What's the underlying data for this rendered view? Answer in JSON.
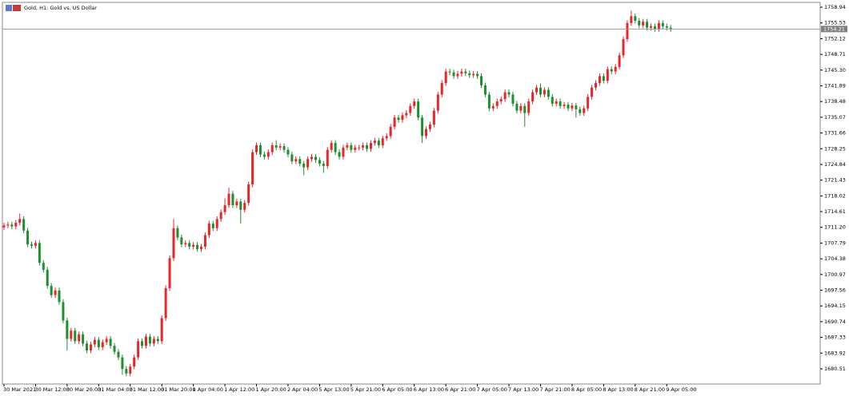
{
  "chart_data": {
    "type": "candlestick",
    "title": "Gold, H1:  Gold vs. US Dollar",
    "up_color": "#e8262a",
    "down_color": "#1f8f2e",
    "last_price": 1754.21,
    "grid": false,
    "ylim": [
      1677.39,
      1759.81
    ],
    "yticks": [
      1758.94,
      1755.53,
      1752.12,
      1748.71,
      {
        "value": 1745.3,
        "label": "1745.30"
      },
      1741.89,
      1738.48,
      1735.07,
      1731.66,
      1728.25,
      1724.84,
      1721.43,
      1718.02,
      1714.61,
      {
        "value": 1711.2,
        "label": "1711.20"
      },
      1707.79,
      1704.38,
      1700.97,
      1697.56,
      1694.15,
      1690.74,
      1687.33,
      1683.92,
      1680.51
    ],
    "categories": [
      "30 Mar 2021",
      null,
      null,
      null,
      null,
      null,
      null,
      null,
      "30 Mar 12:00",
      null,
      null,
      null,
      null,
      null,
      null,
      null,
      "30 Mar 20:00",
      null,
      null,
      null,
      null,
      null,
      null,
      null,
      "31 Mar 04:00",
      null,
      null,
      null,
      null,
      null,
      null,
      null,
      "31 Mar 12:00",
      null,
      null,
      null,
      null,
      null,
      null,
      null,
      "31 Mar 20:00",
      null,
      null,
      null,
      null,
      null,
      null,
      null,
      "1 Apr 04:00",
      null,
      null,
      null,
      null,
      null,
      null,
      null,
      "1 Apr 12:00",
      null,
      null,
      null,
      null,
      null,
      null,
      null,
      "1 Apr 20:00",
      null,
      null,
      null,
      null,
      null,
      null,
      null,
      "2 Apr 04:00",
      null,
      null,
      null,
      null,
      null,
      null,
      null,
      "5 Apr 13:00",
      null,
      null,
      null,
      null,
      null,
      null,
      null,
      "5 Apr 21:00",
      null,
      null,
      null,
      null,
      null,
      null,
      null,
      "6 Apr 05:00",
      null,
      null,
      null,
      null,
      null,
      null,
      null,
      "6 Apr 13:00",
      null,
      null,
      null,
      null,
      null,
      null,
      null,
      "6 Apr 21:00",
      null,
      null,
      null,
      null,
      null,
      null,
      null,
      "7 Apr 05:00",
      null,
      null,
      null,
      null,
      null,
      null,
      null,
      "7 Apr 13:00",
      null,
      null,
      null,
      null,
      null,
      null,
      null,
      "7 Apr 21:00",
      null,
      null,
      null,
      null,
      null,
      null,
      null,
      "8 Apr 05:00",
      null,
      null,
      null,
      null,
      null,
      null,
      null,
      "8 Apr 13:00",
      null,
      null,
      null,
      null,
      null,
      null,
      null,
      "8 Apr 21:00",
      null,
      null,
      null,
      null,
      null,
      null,
      null,
      "9 Apr 05:00",
      null
    ],
    "open": [
      1711.2,
      1711.6,
      1711.8,
      1711.4,
      1712.2,
      1713.0,
      1710.5,
      1707.5,
      1707.2,
      1707.8,
      1703.5,
      1702.0,
      1698.5,
      1696.5,
      1697.5,
      1695.0,
      1691.0,
      1687.0,
      1688.8,
      1686.5,
      1688.0,
      1686.0,
      1684.5,
      1685.8,
      1686.8,
      1685.2,
      1686.3,
      1687.0,
      1685.5,
      1684.2,
      1683.0,
      1680.5,
      1679.5,
      1681.0,
      1683.0,
      1686.5,
      1685.5,
      1687.5,
      1686.0,
      1687.0,
      1686.5,
      1691.5,
      1698.0,
      1704.5,
      1711.0,
      1709.0,
      1707.5,
      1707.8,
      1707.0,
      1707.4,
      1706.5,
      1707.0,
      1709.5,
      1712.0,
      1711.0,
      1713.0,
      1714.5,
      1716.0,
      1718.5,
      1716.0,
      1716.8,
      1715.0,
      1716.5,
      1720.5,
      1727.5,
      1729.0,
      1727.0,
      1726.5,
      1727.5,
      1729.0,
      1728.5,
      1728.8,
      1728.0,
      1727.0,
      1725.5,
      1726.0,
      1725.0,
      1724.2,
      1726.0,
      1726.5,
      1725.8,
      1725.0,
      1724.5,
      1728.0,
      1729.5,
      1727.5,
      1726.5,
      1728.5,
      1729.0,
      1728.0,
      1728.5,
      1728.5,
      1729.0,
      1728.2,
      1729.5,
      1730.0,
      1729.0,
      1730.5,
      1731.0,
      1733.0,
      1735.0,
      1734.5,
      1735.5,
      1736.0,
      1737.5,
      1738.5,
      1735.0,
      1731.0,
      1732.5,
      1733.5,
      1736.5,
      1740.0,
      1742.5,
      1745.0,
      1744.8,
      1744.0,
      1744.5,
      1745.0,
      1744.6,
      1744.2,
      1744.5,
      1744.0,
      1742.0,
      1740.0,
      1737.0,
      1737.5,
      1738.5,
      1739.0,
      1740.5,
      1740.0,
      1738.0,
      1736.5,
      1737.5,
      1736.0,
      1738.5,
      1740.5,
      1741.5,
      1740.0,
      1741.0,
      1739.5,
      1738.0,
      1738.5,
      1737.5,
      1737.8,
      1737.0,
      1737.6,
      1736.8,
      1736.0,
      1737.0,
      1739.5,
      1741.5,
      1742.5,
      1744.0,
      1743.0,
      1745.5,
      1745.0,
      1746.0,
      1748.5,
      1752.0,
      1755.5,
      1757.0,
      1756.0,
      1755.0,
      1755.8,
      1754.5,
      1754.8,
      1754.2,
      1755.5,
      1754.8,
      1754.5
    ],
    "high": [
      1712.2,
      1712.4,
      1712.4,
      1712.8,
      1714.2,
      1713.6,
      1711.1,
      1708.1,
      1708.4,
      1708.4,
      1704.1,
      1702.6,
      1699.1,
      1698.1,
      1698.1,
      1695.6,
      1691.6,
      1689.4,
      1689.4,
      1688.6,
      1688.6,
      1686.6,
      1686.4,
      1687.4,
      1687.4,
      1686.9,
      1687.6,
      1687.6,
      1686.1,
      1684.8,
      1683.6,
      1681.1,
      1681.6,
      1683.6,
      1687.1,
      1687.1,
      1688.1,
      1688.1,
      1687.6,
      1687.6,
      1692.1,
      1698.6,
      1705.1,
      1713.0,
      1711.6,
      1709.6,
      1708.4,
      1708.4,
      1708.0,
      1708.0,
      1707.6,
      1710.1,
      1712.6,
      1712.6,
      1713.6,
      1715.1,
      1717.5,
      1719.8,
      1719.1,
      1717.4,
      1717.4,
      1717.1,
      1721.1,
      1728.1,
      1729.6,
      1729.6,
      1727.6,
      1728.1,
      1729.6,
      1730.1,
      1729.4,
      1729.4,
      1728.6,
      1727.6,
      1726.6,
      1726.6,
      1725.6,
      1726.6,
      1727.1,
      1727.1,
      1726.4,
      1725.6,
      1728.6,
      1730.1,
      1730.1,
      1728.1,
      1729.1,
      1729.6,
      1729.6,
      1729.1,
      1729.1,
      1729.6,
      1729.6,
      1730.1,
      1730.6,
      1730.6,
      1731.1,
      1731.6,
      1733.6,
      1735.6,
      1735.6,
      1736.1,
      1736.6,
      1738.1,
      1739.1,
      1739.1,
      1735.6,
      1733.1,
      1734.1,
      1737.1,
      1740.6,
      1743.1,
      1745.6,
      1745.6,
      1745.4,
      1745.1,
      1745.6,
      1745.6,
      1745.2,
      1745.1,
      1745.1,
      1744.6,
      1742.6,
      1740.6,
      1738.1,
      1739.1,
      1739.6,
      1741.1,
      1741.1,
      1740.6,
      1738.6,
      1738.1,
      1738.1,
      1739.1,
      1741.1,
      1742.1,
      1742.4,
      1741.6,
      1741.6,
      1740.1,
      1739.1,
      1739.1,
      1738.4,
      1738.4,
      1738.2,
      1738.2,
      1737.4,
      1737.6,
      1740.1,
      1742.1,
      1743.1,
      1744.6,
      1744.6,
      1746.1,
      1746.1,
      1746.6,
      1749.1,
      1752.6,
      1756.1,
      1758.2,
      1757.6,
      1756.6,
      1756.4,
      1756.4,
      1755.4,
      1755.4,
      1756.1,
      1756.1,
      1755.4,
      1755.1
    ],
    "low": [
      1710.6,
      1711.0,
      1710.8,
      1710.8,
      1711.6,
      1709.9,
      1706.9,
      1706.6,
      1706.6,
      1702.9,
      1701.4,
      1697.9,
      1695.9,
      1695.9,
      1694.4,
      1690.4,
      1684.5,
      1686.4,
      1685.9,
      1685.9,
      1685.4,
      1683.9,
      1683.9,
      1685.2,
      1684.6,
      1684.6,
      1685.7,
      1684.9,
      1683.6,
      1682.4,
      1679.2,
      1678.9,
      1678.9,
      1680.4,
      1682.4,
      1684.9,
      1684.9,
      1685.4,
      1685.4,
      1685.9,
      1685.9,
      1690.9,
      1697.4,
      1703.9,
      1708.4,
      1706.9,
      1706.9,
      1706.4,
      1706.4,
      1705.9,
      1705.9,
      1706.4,
      1708.9,
      1710.4,
      1710.4,
      1712.4,
      1713.9,
      1715.4,
      1715.4,
      1715.4,
      1712.0,
      1714.4,
      1715.9,
      1719.9,
      1726.9,
      1726.4,
      1725.9,
      1725.9,
      1726.9,
      1727.9,
      1727.9,
      1727.4,
      1726.4,
      1724.9,
      1724.9,
      1724.4,
      1722.5,
      1723.6,
      1725.4,
      1725.2,
      1724.4,
      1723.0,
      1723.9,
      1727.4,
      1726.9,
      1725.9,
      1725.9,
      1727.9,
      1727.4,
      1727.4,
      1727.9,
      1727.9,
      1727.6,
      1727.6,
      1728.9,
      1728.4,
      1728.4,
      1729.9,
      1730.4,
      1732.4,
      1733.9,
      1733.9,
      1734.9,
      1735.4,
      1736.9,
      1734.4,
      1729.5,
      1730.4,
      1731.9,
      1732.9,
      1735.9,
      1739.4,
      1741.9,
      1744.2,
      1743.4,
      1743.4,
      1743.9,
      1744.0,
      1743.6,
      1743.6,
      1743.4,
      1741.4,
      1739.4,
      1736.4,
      1736.4,
      1736.9,
      1737.9,
      1738.4,
      1739.4,
      1737.4,
      1735.9,
      1735.9,
      1733.0,
      1735.4,
      1737.9,
      1739.9,
      1739.4,
      1739.4,
      1738.9,
      1737.4,
      1737.4,
      1736.9,
      1736.9,
      1736.4,
      1736.4,
      1735.0,
      1735.4,
      1735.4,
      1736.4,
      1738.9,
      1740.9,
      1741.9,
      1742.4,
      1742.4,
      1744.4,
      1744.4,
      1745.4,
      1747.9,
      1751.4,
      1754.9,
      1755.4,
      1754.4,
      1754.4,
      1753.9,
      1753.9,
      1753.6,
      1753.6,
      1754.2,
      1753.9,
      1753.61
    ],
    "close": [
      1711.6,
      1711.8,
      1711.4,
      1712.2,
      1713.0,
      1710.5,
      1707.5,
      1707.2,
      1707.8,
      1703.5,
      1702.0,
      1698.5,
      1696.5,
      1697.5,
      1695.0,
      1691.0,
      1687.0,
      1688.8,
      1686.5,
      1688.0,
      1686.0,
      1684.5,
      1685.8,
      1686.8,
      1685.2,
      1686.3,
      1687.0,
      1685.5,
      1684.2,
      1683.0,
      1680.5,
      1679.5,
      1681.0,
      1683.0,
      1686.5,
      1685.5,
      1687.5,
      1686.0,
      1687.0,
      1686.5,
      1691.5,
      1698.0,
      1704.5,
      1711.0,
      1709.0,
      1707.5,
      1707.8,
      1707.0,
      1707.4,
      1706.5,
      1707.0,
      1709.5,
      1712.0,
      1711.0,
      1713.0,
      1714.5,
      1716.0,
      1718.5,
      1716.0,
      1716.8,
      1715.0,
      1716.5,
      1720.5,
      1727.5,
      1729.0,
      1727.0,
      1726.5,
      1727.5,
      1729.0,
      1728.5,
      1728.8,
      1728.0,
      1727.0,
      1725.5,
      1726.0,
      1725.0,
      1724.2,
      1726.0,
      1726.5,
      1725.8,
      1725.0,
      1724.5,
      1728.0,
      1729.5,
      1727.5,
      1726.5,
      1728.5,
      1729.0,
      1728.0,
      1728.5,
      1728.5,
      1729.0,
      1728.2,
      1729.5,
      1730.0,
      1729.0,
      1730.5,
      1731.0,
      1733.0,
      1735.0,
      1734.5,
      1735.5,
      1736.0,
      1737.5,
      1738.5,
      1735.0,
      1731.0,
      1732.5,
      1733.5,
      1736.5,
      1740.0,
      1742.5,
      1745.0,
      1744.8,
      1744.0,
      1744.5,
      1745.0,
      1744.6,
      1744.2,
      1744.5,
      1744.0,
      1742.0,
      1740.0,
      1737.0,
      1737.5,
      1738.5,
      1739.0,
      1740.5,
      1740.0,
      1738.0,
      1736.5,
      1737.5,
      1736.0,
      1738.5,
      1740.5,
      1741.5,
      1740.0,
      1741.0,
      1739.5,
      1738.0,
      1738.5,
      1737.5,
      1737.8,
      1737.0,
      1737.6,
      1736.8,
      1736.0,
      1737.0,
      1739.5,
      1741.5,
      1742.5,
      1744.0,
      1743.0,
      1745.5,
      1745.0,
      1746.0,
      1748.5,
      1752.0,
      1755.5,
      1757.0,
      1756.0,
      1755.0,
      1755.8,
      1754.5,
      1754.8,
      1754.2,
      1755.5,
      1754.8,
      1754.5,
      1754.21
    ]
  }
}
